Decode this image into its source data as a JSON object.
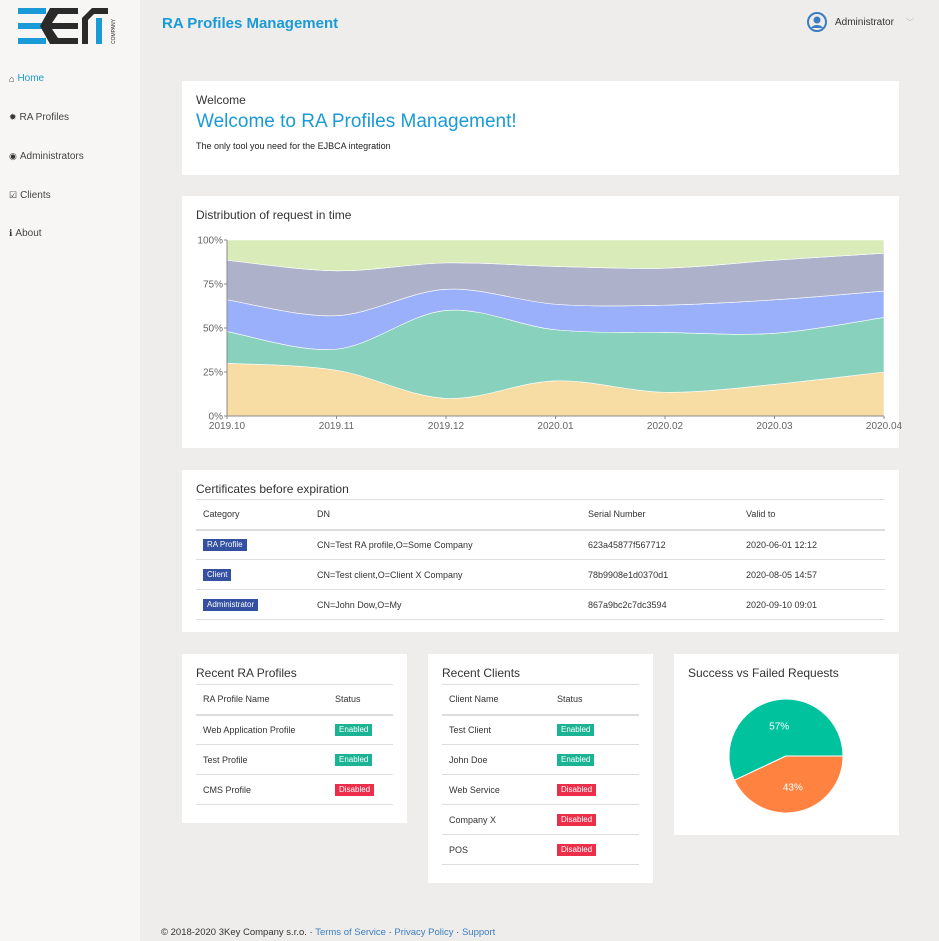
{
  "app": {
    "title": "RA Profiles Management",
    "logo_text": "3KEY COMPANY",
    "user": "Administrator"
  },
  "sidebar": {
    "items": [
      {
        "label": "Home",
        "icon": "home-icon",
        "active": true
      },
      {
        "label": "RA Profiles",
        "icon": "cog-icon"
      },
      {
        "label": "Administrators",
        "icon": "user-circle-icon"
      },
      {
        "label": "Clients",
        "icon": "check-square-icon"
      },
      {
        "label": "About",
        "icon": "info-icon"
      }
    ]
  },
  "welcome": {
    "title": "Welcome",
    "heading": "Welcome to RA Profiles Management!",
    "subtitle": "The only tool you need for the EJBCA integration"
  },
  "chart_data": [
    {
      "type": "area",
      "stacked": "percent",
      "title": "Distribution of request in time",
      "categories": [
        "2019.10",
        "2019.11",
        "2019.12",
        "2020.01",
        "2020.02",
        "2020.03",
        "2020.04"
      ],
      "y_ticks": [
        "0%",
        "25%",
        "50%",
        "75%",
        "100%"
      ],
      "ylim": [
        0,
        100
      ],
      "grid": false,
      "series": [
        {
          "values": [
            30,
            26,
            10,
            20,
            13.5,
            18,
            25
          ],
          "color": "#f7dca4"
        },
        {
          "values": [
            18,
            12,
            50,
            29,
            34,
            29,
            31
          ],
          "color": "#88d1bc"
        },
        {
          "values": [
            18,
            19,
            12,
            14.5,
            15.5,
            19,
            15
          ],
          "color": "#9bb0fb"
        },
        {
          "values": [
            22.5,
            25.5,
            15,
            21.5,
            21,
            22.5,
            21.5
          ],
          "color": "#adb1ca"
        },
        {
          "values": [
            11.5,
            17.5,
            13,
            15,
            16,
            11.5,
            7.5
          ],
          "color": "#d9ebb9"
        }
      ]
    },
    {
      "type": "pie",
      "title": "Success vs Failed Requests",
      "slices": [
        {
          "label": "57%",
          "value": 57,
          "color": "#00c39e"
        },
        {
          "label": "43%",
          "value": 43,
          "color": "#ff8241"
        }
      ]
    }
  ],
  "certificates": {
    "title": "Certificates before expiration",
    "columns": [
      "Category",
      "DN",
      "Serial Number",
      "Valid to"
    ],
    "rows": [
      {
        "category": "RA Profile",
        "dn": "CN=Test RA profile,O=Some Company",
        "serial": "623a45877f567712",
        "valid": "2020-06-01 12:12"
      },
      {
        "category": "Client",
        "dn": "CN=Test client,O=Client X Company",
        "serial": "78b9908e1d0370d1",
        "valid": "2020-08-05 14:57"
      },
      {
        "category": "Administrator",
        "dn": "CN=John Dow,O=My",
        "serial": "867a9bc2c7dc3594",
        "valid": "2020-09-10 09:01"
      }
    ]
  },
  "ra_profiles": {
    "title": "Recent RA Profiles",
    "columns": [
      "RA Profile Name",
      "Status"
    ],
    "rows": [
      {
        "name": "Web Application Profile",
        "status": "Enabled"
      },
      {
        "name": "Test Profile",
        "status": "Enabled"
      },
      {
        "name": "CMS Profile",
        "status": "Disabled"
      }
    ]
  },
  "clients": {
    "title": "Recent Clients",
    "columns": [
      "Client Name",
      "Status"
    ],
    "rows": [
      {
        "name": "Test Client",
        "status": "Enabled"
      },
      {
        "name": "John Doe",
        "status": "Enabled"
      },
      {
        "name": "Web Service",
        "status": "Disabled"
      },
      {
        "name": "Company X",
        "status": "Disabled"
      },
      {
        "name": "POS",
        "status": "Disabled"
      }
    ]
  },
  "colors": {
    "accent": "#1a9ad6",
    "badge_blue": "#3450a1",
    "enabled": "#1ab394",
    "disabled": "#ed2e4a"
  },
  "footer": {
    "copyright": "© 2018-2020  3Key Company s.r.o.",
    "sep": " · ",
    "links": [
      "Terms of Service",
      "Privacy Policy",
      "Support"
    ]
  }
}
